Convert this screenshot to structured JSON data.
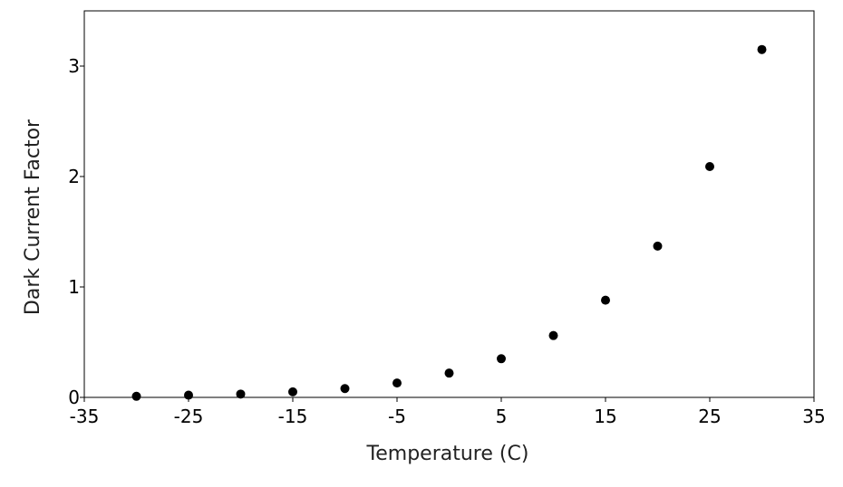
{
  "chart_data": {
    "type": "scatter",
    "title": "",
    "xlabel": "Temperature (C)",
    "ylabel": "Dark Current Factor",
    "xlim": [
      -35,
      35
    ],
    "ylim": [
      0,
      3.5
    ],
    "x_ticks": [
      -35,
      -25,
      -15,
      -5,
      5,
      15,
      25,
      35
    ],
    "y_ticks": [
      0,
      1,
      2,
      3
    ],
    "grid": false,
    "legend": "none",
    "marker_color": "#000000",
    "series": [
      {
        "x": [
          -30,
          -25,
          -20,
          -15,
          -10,
          -5,
          0,
          5,
          10,
          15,
          20,
          25,
          30
        ],
        "y": [
          0.01,
          0.02,
          0.03,
          0.05,
          0.08,
          0.13,
          0.22,
          0.35,
          0.56,
          0.88,
          1.37,
          2.09,
          3.15
        ]
      }
    ]
  }
}
